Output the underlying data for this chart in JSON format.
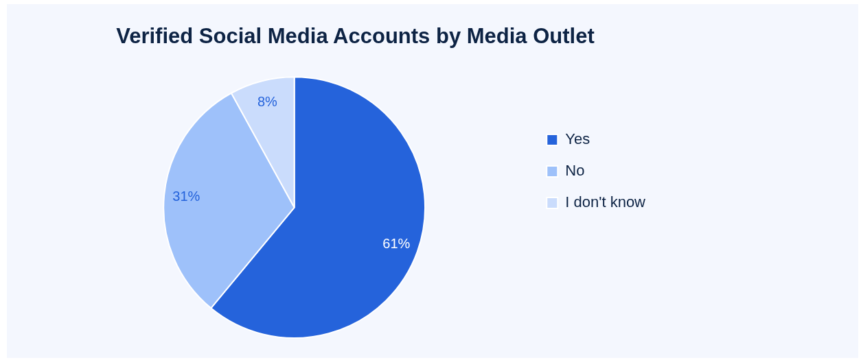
{
  "chart_data": {
    "type": "pie",
    "title": "Verified Social Media Accounts by Media Outlet",
    "categories": [
      "Yes",
      "No",
      "I don't know"
    ],
    "values": [
      61,
      31,
      8
    ],
    "colors": [
      "#2563db",
      "#9ec1fa",
      "#cadcfc"
    ],
    "value_labels": [
      "61%",
      "31%",
      "8%"
    ],
    "legend": "right"
  }
}
